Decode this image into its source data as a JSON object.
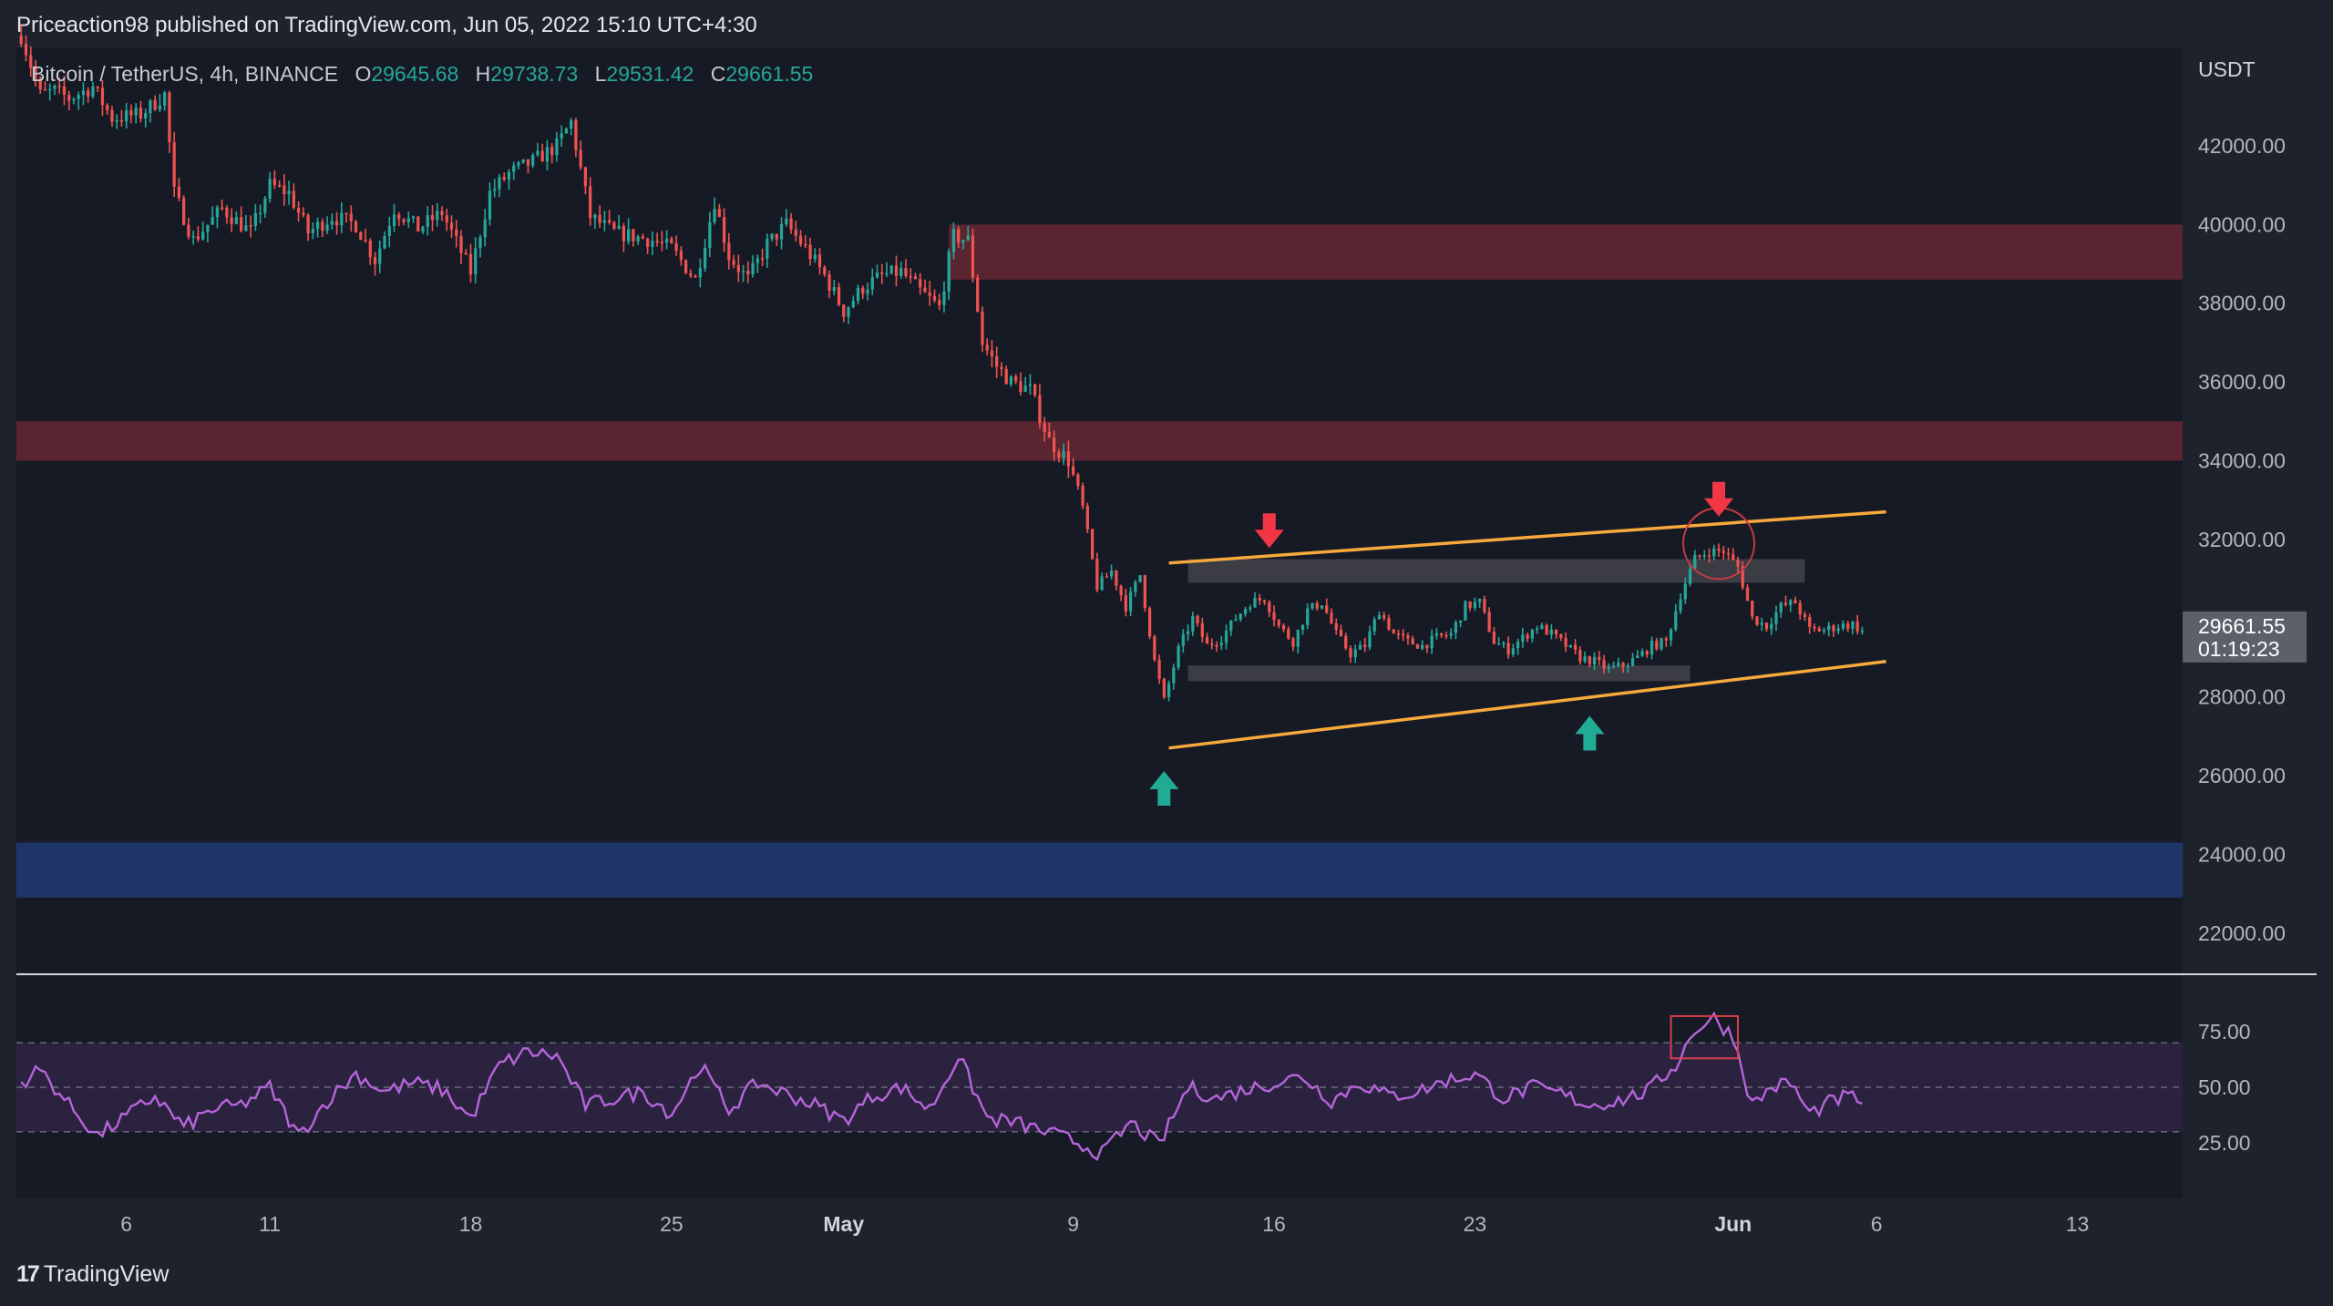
{
  "attribution": "Priceaction98 published on TradingView.com, Jun 05, 2022 15:10 UTC+4:30",
  "footer": {
    "logo_text": "TradingView",
    "logo_icon": "tradingview-logo-icon"
  },
  "colors": {
    "background": "#1e222d",
    "pane": "#161a25",
    "up": "#26a69a",
    "down": "#ef5350",
    "resistance_zone": "#5a2530",
    "support_zone": "#1f3468",
    "consolidation_zone": "#3f4048",
    "channel": "#f7a93b",
    "rsi_line": "#b565d9",
    "rsi_band": "#2b2240",
    "arrow_down": "#f23645",
    "arrow_up": "#22ab94"
  },
  "chart_data": {
    "type": "candlestick",
    "symbol": "Bitcoin / TetherUS, 4h, BINANCE",
    "ohlc_label": {
      "o_key": "O",
      "o": "29645.68",
      "h_key": "H",
      "h": "29738.73",
      "l_key": "L",
      "l": "29531.42",
      "c_key": "C",
      "c": "29661.55"
    },
    "currency": "USDT",
    "price_axis": {
      "ylim": [
        21000,
        44500
      ],
      "ticks": [
        {
          "v": 22000,
          "label": "22000.00"
        },
        {
          "v": 24000,
          "label": "24000.00"
        },
        {
          "v": 26000,
          "label": "26000.00"
        },
        {
          "v": 28000,
          "label": "28000.00"
        },
        {
          "v": 32000,
          "label": "32000.00"
        },
        {
          "v": 34000,
          "label": "34000.00"
        },
        {
          "v": 36000,
          "label": "36000.00"
        },
        {
          "v": 38000,
          "label": "38000.00"
        },
        {
          "v": 40000,
          "label": "40000.00"
        },
        {
          "v": 42000,
          "label": "42000.00"
        }
      ]
    },
    "last_price": {
      "value": 29661.55,
      "label": "29661.55",
      "countdown": "01:19:23"
    },
    "time_axis": {
      "xlim": [
        "2022-04-02 04:00",
        "2022-06-16 16:00"
      ],
      "ticks": [
        {
          "t": "2022-04-06",
          "label": "6"
        },
        {
          "t": "2022-04-11",
          "label": "11"
        },
        {
          "t": "2022-04-18",
          "label": "18"
        },
        {
          "t": "2022-04-25",
          "label": "25"
        },
        {
          "t": "2022-05-01",
          "label": "May"
        },
        {
          "t": "2022-05-09",
          "label": "9"
        },
        {
          "t": "2022-05-16",
          "label": "16"
        },
        {
          "t": "2022-05-23",
          "label": "23"
        },
        {
          "t": "2022-06-01",
          "label": "Jun"
        },
        {
          "t": "2022-06-06",
          "label": "6"
        },
        {
          "t": "2022-06-13",
          "label": "13"
        }
      ]
    },
    "anchors": [
      [
        "2022-04-02 08:00",
        44800
      ],
      [
        "2022-04-03 00:00",
        43300
      ],
      [
        "2022-04-03 12:00",
        43400
      ],
      [
        "2022-04-04 00:00",
        43200
      ],
      [
        "2022-04-04 20:00",
        43500
      ],
      [
        "2022-04-05 12:00",
        42700
      ],
      [
        "2022-04-06 12:00",
        42800
      ],
      [
        "2022-04-07 08:00",
        43300
      ],
      [
        "2022-04-07 16:00",
        40800
      ],
      [
        "2022-04-08 08:00",
        39600
      ],
      [
        "2022-04-09 08:00",
        40400
      ],
      [
        "2022-04-10 08:00",
        39800
      ],
      [
        "2022-04-11 00:00",
        41000
      ],
      [
        "2022-04-11 16:00",
        40800
      ],
      [
        "2022-04-12 08:00",
        39800
      ],
      [
        "2022-04-13 04:00",
        40200
      ],
      [
        "2022-04-14 00:00",
        40000
      ],
      [
        "2022-04-14 16:00",
        39100
      ],
      [
        "2022-04-15 08:00",
        40400
      ],
      [
        "2022-04-16 04:00",
        39900
      ],
      [
        "2022-04-17 00:00",
        40300
      ],
      [
        "2022-04-18 00:00",
        38800
      ],
      [
        "2022-04-18 16:00",
        40800
      ],
      [
        "2022-04-19 08:00",
        41300
      ],
      [
        "2022-04-20 04:00",
        41600
      ],
      [
        "2022-04-21 00:00",
        42000
      ],
      [
        "2022-04-21 12:00",
        42600
      ],
      [
        "2022-04-22 04:00",
        40200
      ],
      [
        "2022-04-23 00:00",
        39800
      ],
      [
        "2022-04-23 16:00",
        39700
      ],
      [
        "2022-04-24 08:00",
        39600
      ],
      [
        "2022-04-25 00:00",
        39400
      ],
      [
        "2022-04-25 20:00",
        38600
      ],
      [
        "2022-04-26 12:00",
        40600
      ],
      [
        "2022-04-27 00:00",
        39200
      ],
      [
        "2022-04-27 16:00",
        38600
      ],
      [
        "2022-04-28 08:00",
        39500
      ],
      [
        "2022-04-29 00:00",
        40000
      ],
      [
        "2022-04-29 16:00",
        39400
      ],
      [
        "2022-04-30 08:00",
        38700
      ],
      [
        "2022-05-01 00:00",
        37800
      ],
      [
        "2022-05-01 16:00",
        38400
      ],
      [
        "2022-05-02 08:00",
        38700
      ],
      [
        "2022-05-03 00:00",
        38800
      ],
      [
        "2022-05-03 16:00",
        38300
      ],
      [
        "2022-05-04 08:00",
        37900
      ],
      [
        "2022-05-04 20:00",
        39700
      ],
      [
        "2022-05-05 08:00",
        39600
      ],
      [
        "2022-05-05 20:00",
        37000
      ],
      [
        "2022-05-06 08:00",
        36400
      ],
      [
        "2022-05-06 20:00",
        36000
      ],
      [
        "2022-05-07 12:00",
        35800
      ],
      [
        "2022-05-08 04:00",
        34500
      ],
      [
        "2022-05-08 20:00",
        34000
      ],
      [
        "2022-05-09 08:00",
        32800
      ],
      [
        "2022-05-09 20:00",
        30800
      ],
      [
        "2022-05-10 08:00",
        31200
      ],
      [
        "2022-05-10 20:00",
        30300
      ],
      [
        "2022-05-11 08:00",
        31100
      ],
      [
        "2022-05-11 20:00",
        28900
      ],
      [
        "2022-05-12 04:00",
        27900
      ],
      [
        "2022-05-12 16:00",
        29200
      ],
      [
        "2022-05-13 04:00",
        30000
      ],
      [
        "2022-05-13 16:00",
        29300
      ],
      [
        "2022-05-14 04:00",
        29500
      ],
      [
        "2022-05-14 16:00",
        30000
      ],
      [
        "2022-05-15 04:00",
        30400
      ],
      [
        "2022-05-15 16:00",
        30500
      ],
      [
        "2022-05-16 04:00",
        29800
      ],
      [
        "2022-05-16 16:00",
        29400
      ],
      [
        "2022-05-17 04:00",
        30200
      ],
      [
        "2022-05-17 16:00",
        30400
      ],
      [
        "2022-05-18 04:00",
        29600
      ],
      [
        "2022-05-18 16:00",
        29100
      ],
      [
        "2022-05-19 04:00",
        29300
      ],
      [
        "2022-05-19 16:00",
        30200
      ],
      [
        "2022-05-20 04:00",
        29600
      ],
      [
        "2022-05-20 16:00",
        29400
      ],
      [
        "2022-05-21 04:00",
        29300
      ],
      [
        "2022-05-21 16:00",
        29500
      ],
      [
        "2022-05-22 04:00",
        29600
      ],
      [
        "2022-05-22 16:00",
        30300
      ],
      [
        "2022-05-23 04:00",
        30400
      ],
      [
        "2022-05-23 16:00",
        29400
      ],
      [
        "2022-05-24 04:00",
        29200
      ],
      [
        "2022-05-24 16:00",
        29500
      ],
      [
        "2022-05-25 04:00",
        29800
      ],
      [
        "2022-05-25 16:00",
        29600
      ],
      [
        "2022-05-26 04:00",
        29300
      ],
      [
        "2022-05-26 16:00",
        29000
      ],
      [
        "2022-05-27 04:00",
        28900
      ],
      [
        "2022-05-27 16:00",
        28700
      ],
      [
        "2022-05-28 04:00",
        28800
      ],
      [
        "2022-05-28 16:00",
        29000
      ],
      [
        "2022-05-29 04:00",
        29300
      ],
      [
        "2022-05-29 16:00",
        29400
      ],
      [
        "2022-05-30 04:00",
        30600
      ],
      [
        "2022-05-30 16:00",
        31500
      ],
      [
        "2022-05-31 04:00",
        31700
      ],
      [
        "2022-05-31 16:00",
        31700
      ],
      [
        "2022-06-01 04:00",
        31300
      ],
      [
        "2022-06-01 16:00",
        30000
      ],
      [
        "2022-06-02 04:00",
        29800
      ],
      [
        "2022-06-02 16:00",
        30300
      ],
      [
        "2022-06-03 04:00",
        30400
      ],
      [
        "2022-06-03 16:00",
        29700
      ],
      [
        "2022-06-04 04:00",
        29700
      ],
      [
        "2022-06-04 16:00",
        29800
      ],
      [
        "2022-06-05 04:00",
        29850
      ],
      [
        "2022-06-05 12:00",
        29662
      ]
    ],
    "zones": [
      {
        "name": "resistance-zone-upper",
        "from": "2022-05-04 16:00",
        "to": "2022-06-16 16:00",
        "low": 38600,
        "high": 40000
      },
      {
        "name": "resistance-zone-lower",
        "from": "2022-04-02 04:00",
        "to": "2022-06-16 16:00",
        "low": 34000,
        "high": 35000
      },
      {
        "name": "support-zone",
        "from": "2022-04-02 04:00",
        "to": "2022-06-16 16:00",
        "low": 22900,
        "high": 24300
      },
      {
        "name": "range-top",
        "from": "2022-05-13 00:00",
        "to": "2022-06-03 12:00",
        "low": 30900,
        "high": 31500
      },
      {
        "name": "range-bottom",
        "from": "2022-05-13 00:00",
        "to": "2022-05-30 12:00",
        "low": 28400,
        "high": 28800
      }
    ],
    "channel_lines": [
      {
        "name": "channel-upper",
        "from": [
          "2022-05-12 08:00",
          31400
        ],
        "to": [
          "2022-06-06 08:00",
          32700
        ]
      },
      {
        "name": "channel-lower",
        "from": [
          "2022-05-12 08:00",
          26700
        ],
        "to": [
          "2022-06-06 08:00",
          28900
        ]
      }
    ],
    "arrows": [
      {
        "name": "down-arrow-may16",
        "dir": "down",
        "t": "2022-05-15 20:00",
        "y": 32200
      },
      {
        "name": "down-arrow-may31",
        "dir": "down",
        "t": "2022-05-31 12:00",
        "y": 33000
      },
      {
        "name": "up-arrow-may12",
        "dir": "up",
        "t": "2022-05-12 04:00",
        "y": 25700
      },
      {
        "name": "up-arrow-may27",
        "dir": "up",
        "t": "2022-05-27 00:00",
        "y": 27100
      }
    ],
    "circle": {
      "t": "2022-05-31 12:00",
      "y": 31900
    },
    "rsi": {
      "ylim": [
        0,
        100
      ],
      "ticks": [
        {
          "v": 25,
          "label": "25.00"
        },
        {
          "v": 50,
          "label": "50.00"
        },
        {
          "v": 75,
          "label": "75.00"
        }
      ],
      "band": [
        30,
        70
      ],
      "highlight": {
        "from": "2022-05-29 20:00",
        "to": "2022-06-01 04:00",
        "low": 63,
        "high": 82
      },
      "anchors": [
        [
          "2022-04-02 08:00",
          52
        ],
        [
          "2022-04-03 00:00",
          58
        ],
        [
          "2022-04-04 00:00",
          42
        ],
        [
          "2022-04-05 00:00",
          28
        ],
        [
          "2022-04-06 00:00",
          37
        ],
        [
          "2022-04-07 00:00",
          46
        ],
        [
          "2022-04-08 00:00",
          32
        ],
        [
          "2022-04-09 00:00",
          40
        ],
        [
          "2022-04-10 00:00",
          42
        ],
        [
          "2022-04-11 00:00",
          50
        ],
        [
          "2022-04-12 00:00",
          28
        ],
        [
          "2022-04-13 00:00",
          44
        ],
        [
          "2022-04-14 00:00",
          56
        ],
        [
          "2022-04-15 00:00",
          48
        ],
        [
          "2022-04-16 00:00",
          52
        ],
        [
          "2022-04-17 00:00",
          49
        ],
        [
          "2022-04-18 00:00",
          36
        ],
        [
          "2022-04-19 00:00",
          60
        ],
        [
          "2022-04-20 00:00",
          66
        ],
        [
          "2022-04-21 00:00",
          64
        ],
        [
          "2022-04-22 00:00",
          42
        ],
        [
          "2022-04-23 00:00",
          45
        ],
        [
          "2022-04-24 00:00",
          48
        ],
        [
          "2022-04-25 00:00",
          38
        ],
        [
          "2022-04-26 00:00",
          60
        ],
        [
          "2022-04-27 00:00",
          40
        ],
        [
          "2022-04-28 00:00",
          52
        ],
        [
          "2022-04-29 00:00",
          47
        ],
        [
          "2022-04-30 00:00",
          42
        ],
        [
          "2022-05-01 00:00",
          35
        ],
        [
          "2022-05-02 00:00",
          46
        ],
        [
          "2022-05-03 00:00",
          50
        ],
        [
          "2022-05-04 00:00",
          40
        ],
        [
          "2022-05-05 00:00",
          64
        ],
        [
          "2022-05-06 00:00",
          36
        ],
        [
          "2022-05-07 00:00",
          34
        ],
        [
          "2022-05-08 00:00",
          30
        ],
        [
          "2022-05-09 00:00",
          26
        ],
        [
          "2022-05-10 00:00",
          20
        ],
        [
          "2022-05-11 00:00",
          34
        ],
        [
          "2022-05-12 00:00",
          24
        ],
        [
          "2022-05-13 00:00",
          50
        ],
        [
          "2022-05-14 00:00",
          45
        ],
        [
          "2022-05-15 00:00",
          49
        ],
        [
          "2022-05-16 00:00",
          52
        ],
        [
          "2022-05-17 00:00",
          55
        ],
        [
          "2022-05-18 00:00",
          44
        ],
        [
          "2022-05-19 00:00",
          52
        ],
        [
          "2022-05-20 00:00",
          46
        ],
        [
          "2022-05-21 00:00",
          48
        ],
        [
          "2022-05-22 00:00",
          53
        ],
        [
          "2022-05-23 00:00",
          56
        ],
        [
          "2022-05-24 00:00",
          45
        ],
        [
          "2022-05-25 00:00",
          50
        ],
        [
          "2022-05-26 00:00",
          47
        ],
        [
          "2022-05-27 00:00",
          42
        ],
        [
          "2022-05-28 00:00",
          44
        ],
        [
          "2022-05-29 00:00",
          48
        ],
        [
          "2022-05-30 00:00",
          60
        ],
        [
          "2022-05-30 16:00",
          76
        ],
        [
          "2022-05-31 08:00",
          81
        ],
        [
          "2022-06-01 00:00",
          73
        ],
        [
          "2022-06-01 16:00",
          42
        ],
        [
          "2022-06-02 08:00",
          50
        ],
        [
          "2022-06-03 00:00",
          52
        ],
        [
          "2022-06-03 16:00",
          38
        ],
        [
          "2022-06-04 08:00",
          43
        ],
        [
          "2022-06-05 00:00",
          46
        ],
        [
          "2022-06-05 12:00",
          44
        ]
      ]
    }
  }
}
